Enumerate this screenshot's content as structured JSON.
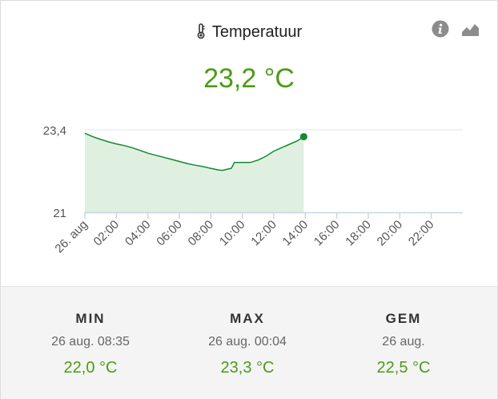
{
  "card": {
    "title": "Temperatuur",
    "current_value": "23,2 °C",
    "icons": {
      "title": "thermometer-icon",
      "info": "info-icon",
      "graph": "area-graph-icon"
    },
    "colors": {
      "accent": "#4a9d10",
      "line": "#128a2d",
      "fill": "#dff0e1"
    }
  },
  "stats": [
    {
      "label": "MIN",
      "date": "26 aug. 08:35",
      "value": "22,0 °C"
    },
    {
      "label": "MAX",
      "date": "26 aug. 00:04",
      "value": "23,3 °C"
    },
    {
      "label": "GEM",
      "date": "26 aug.",
      "value": "22,5 °C"
    }
  ],
  "chart_data": {
    "type": "area",
    "title": "",
    "xlabel": "",
    "ylabel": "",
    "x_tick_labels": [
      "26. aug",
      "02:00",
      "04:00",
      "06:00",
      "08:00",
      "10:00",
      "12:00",
      "14:00",
      "16:00",
      "18:00",
      "20:00",
      "22:00"
    ],
    "x_unit": "hours",
    "xlim": [
      0,
      24
    ],
    "y_tick_labels": [
      "23,4",
      "21"
    ],
    "y_ticks": [
      23.4,
      21
    ],
    "ylim": [
      21,
      23.4
    ],
    "grid": true,
    "series": [
      {
        "points": [
          [
            0.0,
            23.3
          ],
          [
            0.5,
            23.2
          ],
          [
            1.0,
            23.12
          ],
          [
            1.5,
            23.05
          ],
          [
            2.0,
            22.99
          ],
          [
            2.5,
            22.94
          ],
          [
            3.0,
            22.88
          ],
          [
            3.5,
            22.8
          ],
          [
            4.0,
            22.72
          ],
          [
            4.5,
            22.66
          ],
          [
            5.0,
            22.6
          ],
          [
            5.5,
            22.54
          ],
          [
            6.0,
            22.48
          ],
          [
            6.5,
            22.42
          ],
          [
            7.0,
            22.37
          ],
          [
            7.5,
            22.33
          ],
          [
            8.0,
            22.28
          ],
          [
            8.5,
            22.23
          ],
          [
            8.75,
            22.22
          ],
          [
            9.0,
            22.25
          ],
          [
            9.3,
            22.28
          ],
          [
            9.5,
            22.45
          ],
          [
            10.0,
            22.45
          ],
          [
            10.5,
            22.45
          ],
          [
            11.0,
            22.52
          ],
          [
            11.5,
            22.63
          ],
          [
            12.0,
            22.78
          ],
          [
            12.5,
            22.88
          ],
          [
            13.0,
            22.98
          ],
          [
            13.5,
            23.08
          ],
          [
            13.9,
            23.2
          ]
        ]
      }
    ]
  }
}
